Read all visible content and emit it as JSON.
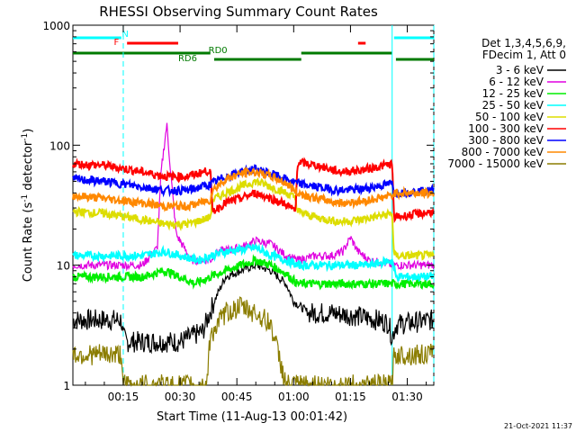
{
  "chart_data": {
    "type": "line",
    "title": "RHESSI Observing Summary Count Rates",
    "xlabel": "Start Time (11-Aug-13 00:01:42)",
    "ylabel_main": "Count Rate (s",
    "ylabel_sup1": "-1",
    "ylabel_mid": " detector",
    "ylabel_sup2": "-1",
    "ylabel_end": ")",
    "yscale": "log",
    "ylim": [
      1,
      1000
    ],
    "xlim_minutes": [
      1.7,
      97
    ],
    "y_ticks": [
      "1",
      "10",
      "100",
      "1000"
    ],
    "x_ticks": [
      {
        "label": "00:15",
        "minutes": 15
      },
      {
        "label": "00:30",
        "minutes": 30
      },
      {
        "label": "00:45",
        "minutes": 45
      },
      {
        "label": "01:00",
        "minutes": 60
      },
      {
        "label": "01:15",
        "minutes": 75
      },
      {
        "label": "01:30",
        "minutes": 90
      }
    ],
    "legend_header": [
      "Det 1,3,4,5,6,9,",
      "FDecim 1, Att 0"
    ],
    "legend_position": "right",
    "series": [
      {
        "name": "3 - 6 keV",
        "color": "#000000",
        "points": [
          [
            1.7,
            3.5
          ],
          [
            14.5,
            3.5
          ],
          [
            15,
            2.5
          ],
          [
            16,
            2.3
          ],
          [
            24,
            2.3
          ],
          [
            30,
            2.3
          ],
          [
            36,
            2.8
          ],
          [
            39,
            5
          ],
          [
            42,
            8
          ],
          [
            46,
            9
          ],
          [
            50,
            10
          ],
          [
            54,
            9
          ],
          [
            58,
            7
          ],
          [
            60,
            5
          ],
          [
            64,
            4
          ],
          [
            70,
            4
          ],
          [
            76,
            3.8
          ],
          [
            82,
            3.5
          ],
          [
            85,
            3.3
          ],
          [
            86,
            2.5
          ],
          [
            87,
            3.2
          ],
          [
            97,
            3.5
          ]
        ]
      },
      {
        "name": "6 - 12 keV",
        "color": "#e000e0",
        "points": [
          [
            1.7,
            10
          ],
          [
            10,
            10
          ],
          [
            20,
            10
          ],
          [
            24,
            14
          ],
          [
            25,
            60
          ],
          [
            26.5,
            150
          ],
          [
            27.5,
            60
          ],
          [
            29,
            18
          ],
          [
            33,
            11
          ],
          [
            38,
            11
          ],
          [
            40,
            13
          ],
          [
            46,
            14
          ],
          [
            50,
            16
          ],
          [
            54,
            15
          ],
          [
            58,
            12
          ],
          [
            61,
            11
          ],
          [
            66,
            12
          ],
          [
            70,
            12
          ],
          [
            73,
            13
          ],
          [
            75,
            17
          ],
          [
            77,
            13
          ],
          [
            80,
            11
          ],
          [
            86,
            10
          ],
          [
            87,
            10
          ],
          [
            97,
            10
          ]
        ]
      },
      {
        "name": "12 - 25 keV",
        "color": "#00ee00",
        "points": [
          [
            1.7,
            8
          ],
          [
            10,
            8
          ],
          [
            20,
            8
          ],
          [
            26,
            9
          ],
          [
            30,
            8
          ],
          [
            34,
            7
          ],
          [
            38,
            8
          ],
          [
            42,
            9
          ],
          [
            46,
            10
          ],
          [
            50,
            11
          ],
          [
            54,
            10
          ],
          [
            58,
            8.5
          ],
          [
            61,
            7
          ],
          [
            70,
            7
          ],
          [
            80,
            7
          ],
          [
            86,
            7
          ],
          [
            87,
            7
          ],
          [
            97,
            7
          ]
        ]
      },
      {
        "name": "25 - 50 keV",
        "color": "#00ffff",
        "points": [
          [
            1.7,
            12
          ],
          [
            10,
            12
          ],
          [
            20,
            12
          ],
          [
            26,
            13
          ],
          [
            30,
            12
          ],
          [
            35,
            11
          ],
          [
            38,
            12
          ],
          [
            42,
            13
          ],
          [
            46,
            13.5
          ],
          [
            50,
            14
          ],
          [
            54,
            12
          ],
          [
            58,
            11
          ],
          [
            61,
            10
          ],
          [
            70,
            10
          ],
          [
            80,
            10
          ],
          [
            86,
            11
          ],
          [
            87,
            8
          ],
          [
            97,
            8
          ]
        ]
      },
      {
        "name": "50 - 100 keV",
        "color": "#dddd00",
        "points": [
          [
            1.7,
            28
          ],
          [
            10,
            27
          ],
          [
            20,
            24
          ],
          [
            26,
            22
          ],
          [
            32,
            22
          ],
          [
            38,
            25
          ],
          [
            38.5,
            35
          ],
          [
            42,
            40
          ],
          [
            46,
            45
          ],
          [
            50,
            50
          ],
          [
            54,
            45
          ],
          [
            58,
            40
          ],
          [
            60.5,
            36
          ],
          [
            61,
            28
          ],
          [
            66,
            25
          ],
          [
            72,
            23
          ],
          [
            78,
            24
          ],
          [
            86,
            27
          ],
          [
            86.5,
            12
          ],
          [
            97,
            12
          ]
        ]
      },
      {
        "name": "100 - 300 keV",
        "color": "#ff0000",
        "points": [
          [
            1.7,
            70
          ],
          [
            10,
            68
          ],
          [
            20,
            60
          ],
          [
            26,
            55
          ],
          [
            32,
            55
          ],
          [
            38,
            62
          ],
          [
            38.5,
            28
          ],
          [
            42,
            33
          ],
          [
            46,
            36
          ],
          [
            50,
            40
          ],
          [
            54,
            36
          ],
          [
            58,
            32
          ],
          [
            60.5,
            28
          ],
          [
            61,
            72
          ],
          [
            66,
            68
          ],
          [
            72,
            60
          ],
          [
            78,
            62
          ],
          [
            86,
            70
          ],
          [
            86.5,
            25
          ],
          [
            97,
            28
          ]
        ]
      },
      {
        "name": "300 - 800 keV",
        "color": "#0000ff",
        "points": [
          [
            1.7,
            52
          ],
          [
            10,
            50
          ],
          [
            20,
            45
          ],
          [
            26,
            42
          ],
          [
            32,
            42
          ],
          [
            38,
            47
          ],
          [
            38.5,
            48
          ],
          [
            42,
            55
          ],
          [
            46,
            60
          ],
          [
            50,
            63
          ],
          [
            54,
            58
          ],
          [
            58,
            52
          ],
          [
            61,
            48
          ],
          [
            66,
            45
          ],
          [
            72,
            42
          ],
          [
            78,
            43
          ],
          [
            86,
            48
          ],
          [
            86.5,
            40
          ],
          [
            97,
            42
          ]
        ]
      },
      {
        "name": "800 - 7000 keV",
        "color": "#ff8800",
        "points": [
          [
            1.7,
            38
          ],
          [
            10,
            36
          ],
          [
            20,
            33
          ],
          [
            26,
            31
          ],
          [
            32,
            31
          ],
          [
            38,
            35
          ],
          [
            38.5,
            42
          ],
          [
            42,
            52
          ],
          [
            46,
            58
          ],
          [
            50,
            60
          ],
          [
            54,
            55
          ],
          [
            58,
            48
          ],
          [
            61,
            40
          ],
          [
            66,
            36
          ],
          [
            72,
            33
          ],
          [
            78,
            34
          ],
          [
            86,
            38
          ],
          [
            86.5,
            40
          ],
          [
            97,
            40
          ]
        ]
      },
      {
        "name": "7000 - 15000 keV",
        "color": "#8b7d00",
        "points": [
          [
            1.7,
            1.8
          ],
          [
            14.5,
            1.8
          ],
          [
            15,
            1
          ],
          [
            37,
            1
          ],
          [
            38,
            2.6
          ],
          [
            42,
            4
          ],
          [
            46,
            4.5
          ],
          [
            50,
            4
          ],
          [
            54,
            3.2
          ],
          [
            56,
            1.8
          ],
          [
            58,
            1
          ],
          [
            86,
            1
          ],
          [
            86.5,
            1.8
          ],
          [
            97,
            1.8
          ]
        ]
      }
    ],
    "annotations": [
      {
        "label": "N",
        "color": "#00ffff",
        "minutes": 15.5
      },
      {
        "label": "F",
        "color": "#ff0000",
        "minutes": 13.2
      },
      {
        "label": "RD0",
        "color": "#007a00",
        "minutes": 40
      },
      {
        "label": "RD6",
        "color": "#007a00",
        "minutes": 32
      }
    ],
    "flag_bars": [
      {
        "color": "#00ffff",
        "segments": [
          [
            1.7,
            14.5
          ],
          [
            86.5,
            97
          ]
        ]
      },
      {
        "color": "#ff0000",
        "segments": [
          [
            16,
            29.5
          ],
          [
            77,
            79
          ]
        ]
      },
      {
        "color": "#007a00",
        "segments": [
          [
            1.7,
            38
          ],
          [
            62,
            86
          ]
        ]
      },
      {
        "color": "#007a00",
        "segments": [
          [
            39,
            62
          ],
          [
            87,
            97
          ]
        ]
      }
    ],
    "vlines": [
      {
        "color": "#00ffff",
        "dashed": true,
        "minutes": 15
      },
      {
        "color": "#00ffff",
        "dashed": false,
        "minutes": 86
      },
      {
        "color": "#00ffff",
        "dashed": true,
        "minutes": 97
      }
    ],
    "footer_date": "21-Oct-2021 11:37"
  }
}
